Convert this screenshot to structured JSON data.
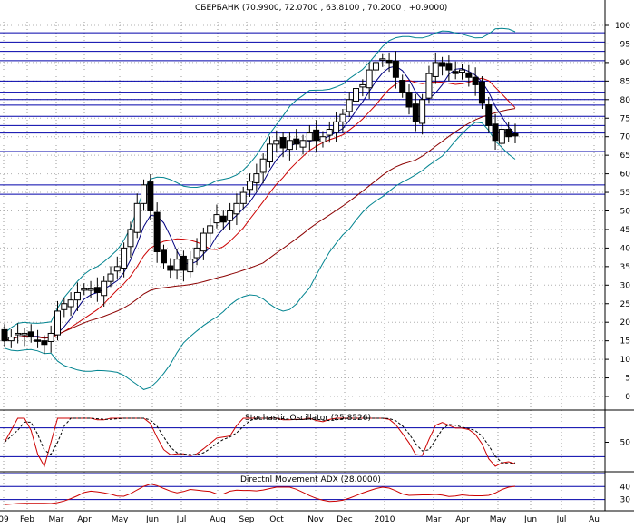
{
  "chart_data": {
    "type": "candlestick",
    "title": "СБЕРБАНК (70.9900, 72.0700 , 63.8100 , 70.2000 , +0.9000)",
    "x_tick_labels": [
      "09",
      "Feb",
      "Mar",
      "Apr",
      "May",
      "Jun",
      "Jul",
      "Aug",
      "Sep",
      "Oct",
      "Nov",
      "Dec",
      "2010",
      "Mar",
      "Apr",
      "May",
      "Jun",
      "Jul",
      "Au"
    ],
    "price_panel": {
      "ylim": [
        0,
        100
      ],
      "yticks": [
        0,
        5,
        10,
        15,
        20,
        25,
        30,
        35,
        40,
        45,
        50,
        55,
        60,
        65,
        70,
        75,
        80,
        85,
        90,
        95,
        100
      ],
      "horizontal_levels": [
        98,
        95.5,
        93,
        90.5,
        85,
        82,
        80,
        78.5,
        75.5,
        73,
        71,
        66,
        57,
        54.5
      ],
      "candles_approx_closes": [
        15,
        16,
        17,
        17,
        16,
        15,
        14,
        17,
        23,
        25,
        26,
        28,
        29,
        29,
        28,
        31,
        33,
        35,
        40,
        45,
        52,
        57,
        50,
        39,
        36,
        34,
        37,
        34,
        37,
        40,
        44,
        46,
        49,
        47,
        50,
        52,
        55,
        58,
        60,
        64,
        68,
        69,
        67,
        69,
        68,
        69,
        71,
        69,
        70,
        72,
        74,
        76,
        80,
        83,
        84,
        88,
        90,
        91,
        90,
        86,
        82,
        78,
        74,
        80,
        87,
        90,
        89,
        88,
        87,
        88,
        86,
        84,
        79,
        73,
        69,
        72,
        70,
        70.2
      ]
    },
    "stochastic": {
      "label": "Stochastic Oscillator (25.8526)",
      "value": 25.8526,
      "ytick": 50,
      "levels": [
        80,
        20
      ]
    },
    "adx": {
      "label": "Directnl Movement ADX (28.0000)",
      "value": 28.0,
      "yticks": [
        40,
        30
      ]
    }
  },
  "colors": {
    "candle_bull": "#ffffff",
    "candle_bear": "#000000",
    "level_line": "#0000aa",
    "bollinger": "#00838f",
    "ma_red": "#cc0000",
    "ma_navy": "#000080",
    "ma_long": "#8b0000",
    "stoch_fast": "#cc0000",
    "stoch_slow": "#000000"
  }
}
